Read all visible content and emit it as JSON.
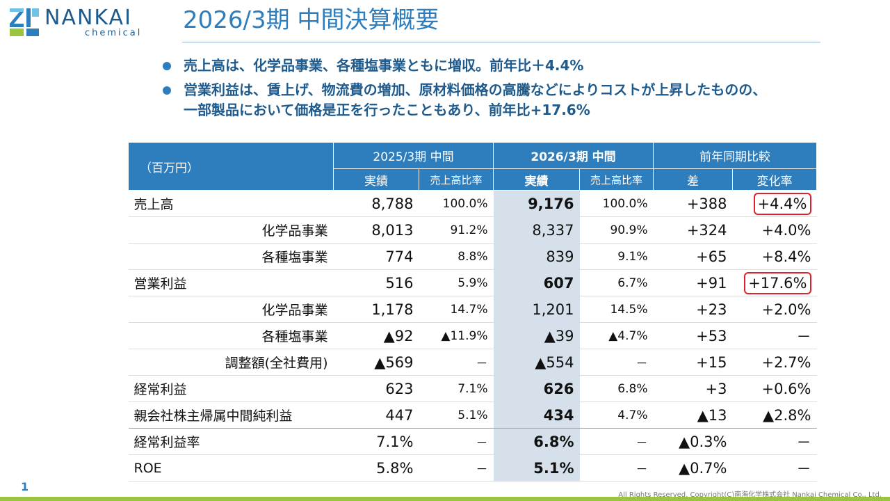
{
  "logo": {
    "name": "NANKAI",
    "sub": "chemical"
  },
  "title": "2026/3期 中間決算概要",
  "bullets": [
    "売上高は、化学品事業、各種塩事業ともに増収。前年比＋4.4%",
    "営業利益は、賃上げ、物流費の増加、原材料価格の高騰などによりコストが上昇したものの、",
    "一部製品において価格是正を行ったこともあり、前年比+17.6%"
  ],
  "table": {
    "unit": "（百万円）",
    "groups": [
      "2025/3期 中間",
      "2026/3期 中間",
      "前年同期比較"
    ],
    "subheaders": [
      "実績",
      "売上高比率",
      "実績",
      "売上高比率",
      "差",
      "変化率"
    ],
    "rows": [
      {
        "label": "売上高",
        "v": [
          "8,788",
          "100.0%",
          "9,176",
          "100.0%",
          "+388",
          "+4.4%"
        ]
      },
      {
        "label": "化学品事業",
        "v": [
          "8,013",
          "91.2%",
          "8,337",
          "90.9%",
          "+324",
          "+4.0%"
        ]
      },
      {
        "label": "各種塩事業",
        "v": [
          "774",
          "8.8%",
          "839",
          "9.1%",
          "+65",
          "+8.4%"
        ]
      },
      {
        "label": "営業利益",
        "v": [
          "516",
          "5.9%",
          "607",
          "6.7%",
          "+91",
          "+17.6%"
        ]
      },
      {
        "label": "化学品事業",
        "v": [
          "1,178",
          "14.7%",
          "1,201",
          "14.5%",
          "+23",
          "+2.0%"
        ]
      },
      {
        "label": "各種塩事業",
        "v": [
          "▲92",
          "▲11.9%",
          "▲39",
          "▲4.7%",
          "+53",
          "－"
        ]
      },
      {
        "label": "調整額(全社費用)",
        "v": [
          "▲569",
          "－",
          "▲554",
          "－",
          "+15",
          "+2.7%"
        ]
      },
      {
        "label": "経常利益",
        "v": [
          "623",
          "7.1%",
          "626",
          "6.8%",
          "+3",
          "+0.6%"
        ]
      },
      {
        "label": "親会社株主帰属中間純利益",
        "v": [
          "447",
          "5.1%",
          "434",
          "4.7%",
          "▲13",
          "▲2.8%"
        ]
      },
      {
        "label": "経常利益率",
        "v": [
          "7.1%",
          "－",
          "6.8%",
          "－",
          "▲0.3%",
          "－"
        ]
      },
      {
        "label": "ROE",
        "v": [
          "5.8%",
          "－",
          "5.1%",
          "－",
          "▲0.7%",
          "－"
        ]
      }
    ]
  },
  "footer": {
    "page": "1",
    "copyright": "All Rights Reserved. Copyright(C)南海化学株式会社 Nankai Chemical Co., Ltd."
  },
  "colors": {
    "accent": "#2e7dbd",
    "highlight": "#e0202a",
    "shade": "#d5e0ea",
    "bar": "#9bc43f"
  }
}
